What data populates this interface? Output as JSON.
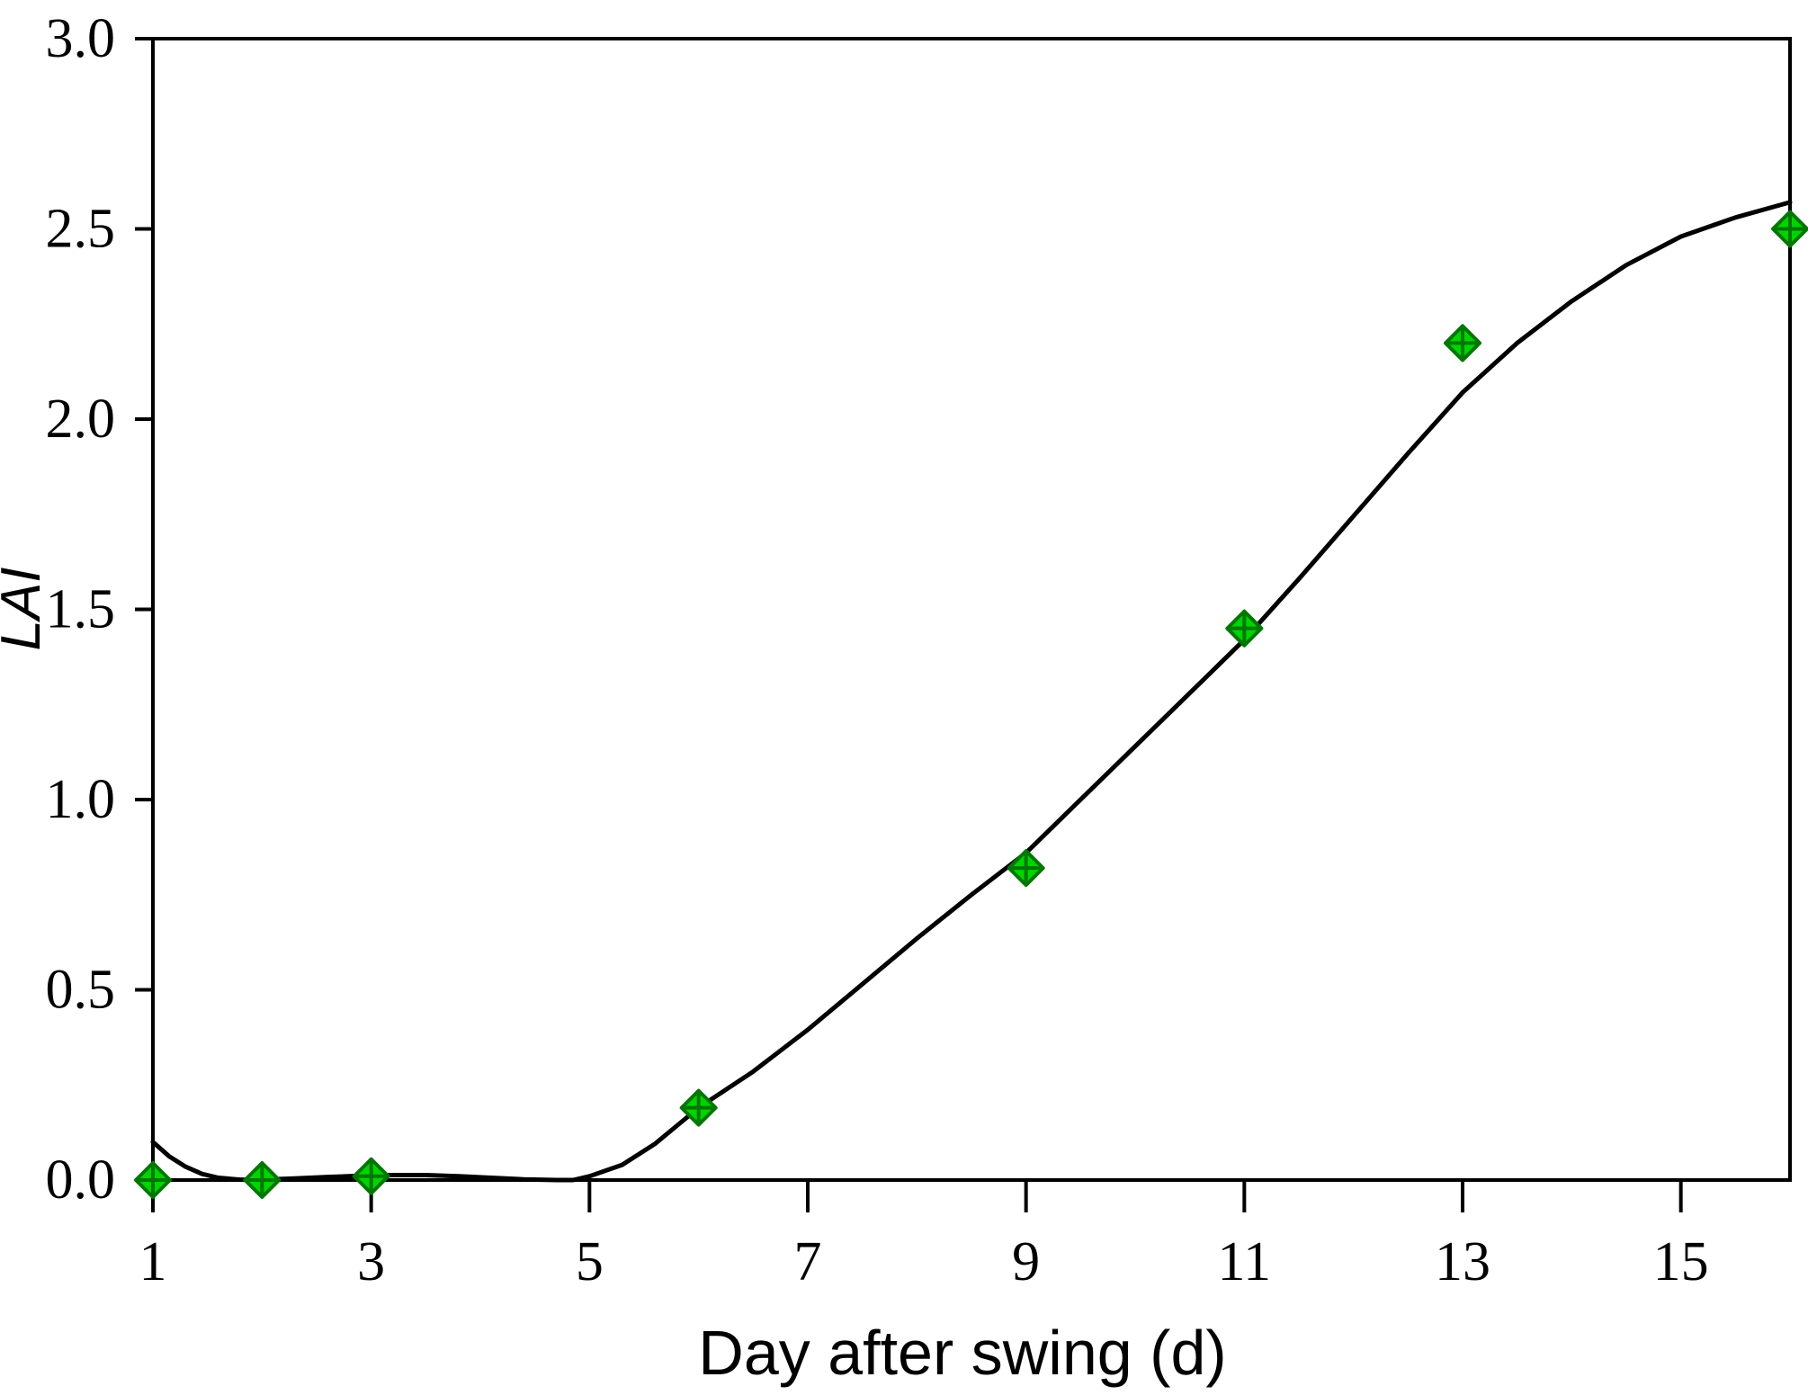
{
  "chart_data": {
    "type": "scatter",
    "title": "",
    "xlabel": "Day after swing (d)",
    "ylabel": "LAI",
    "xlim": [
      1,
      16
    ],
    "ylim": [
      0.0,
      3.0
    ],
    "x_ticks": [
      1,
      3,
      5,
      7,
      9,
      11,
      13,
      15
    ],
    "x_tick_labels": [
      "1",
      "3",
      "5",
      "7",
      "9",
      "11",
      "13",
      "15"
    ],
    "y_ticks": [
      0.0,
      0.5,
      1.0,
      1.5,
      2.0,
      2.5,
      3.0
    ],
    "y_tick_labels": [
      "0.0",
      "0.5",
      "1.0",
      "1.5",
      "2.0",
      "2.5",
      "3.0"
    ],
    "grid": false,
    "legend_position": "none",
    "plot_border": "full-box",
    "series": [
      {
        "name": "observed-lai-points",
        "type": "scatter",
        "marker": "diamond-with-cross",
        "marker_fill": "#00D400",
        "marker_stroke": "#007700",
        "x": [
          1,
          2,
          3,
          6,
          9,
          11,
          13,
          16
        ],
        "y": [
          0.0,
          0.0,
          0.01,
          0.19,
          0.82,
          1.45,
          2.2,
          2.5
        ]
      },
      {
        "name": "fitted-curve",
        "type": "line",
        "color": "#000000",
        "points": [
          [
            1.0,
            0.1
          ],
          [
            1.15,
            0.062
          ],
          [
            1.3,
            0.035
          ],
          [
            1.45,
            0.016
          ],
          [
            1.6,
            0.006
          ],
          [
            1.8,
            0.001
          ],
          [
            2.0,
            0.001
          ],
          [
            2.3,
            0.004
          ],
          [
            2.6,
            0.008
          ],
          [
            2.9,
            0.011
          ],
          [
            3.2,
            0.013
          ],
          [
            3.5,
            0.013
          ],
          [
            3.8,
            0.01
          ],
          [
            4.1,
            0.006
          ],
          [
            4.4,
            0.002
          ],
          [
            4.7,
            0.0
          ],
          [
            4.85,
            0.0
          ],
          [
            5.0,
            0.01
          ],
          [
            5.3,
            0.04
          ],
          [
            5.6,
            0.095
          ],
          [
            6.0,
            0.19
          ],
          [
            6.5,
            0.285
          ],
          [
            7.0,
            0.395
          ],
          [
            7.5,
            0.515
          ],
          [
            8.0,
            0.635
          ],
          [
            8.5,
            0.75
          ],
          [
            9.0,
            0.86
          ],
          [
            9.5,
            1.0
          ],
          [
            10.0,
            1.14
          ],
          [
            10.5,
            1.28
          ],
          [
            11.0,
            1.42
          ],
          [
            11.5,
            1.58
          ],
          [
            12.0,
            1.745
          ],
          [
            12.5,
            1.91
          ],
          [
            13.0,
            2.07
          ],
          [
            13.5,
            2.2
          ],
          [
            14.0,
            2.31
          ],
          [
            14.5,
            2.405
          ],
          [
            15.0,
            2.48
          ],
          [
            15.5,
            2.53
          ],
          [
            16.0,
            2.57
          ]
        ]
      }
    ],
    "colors": {
      "axis": "#000000",
      "curve": "#000000",
      "marker_fill": "#00D400",
      "marker_stroke": "#007700",
      "background": "#ffffff"
    }
  }
}
